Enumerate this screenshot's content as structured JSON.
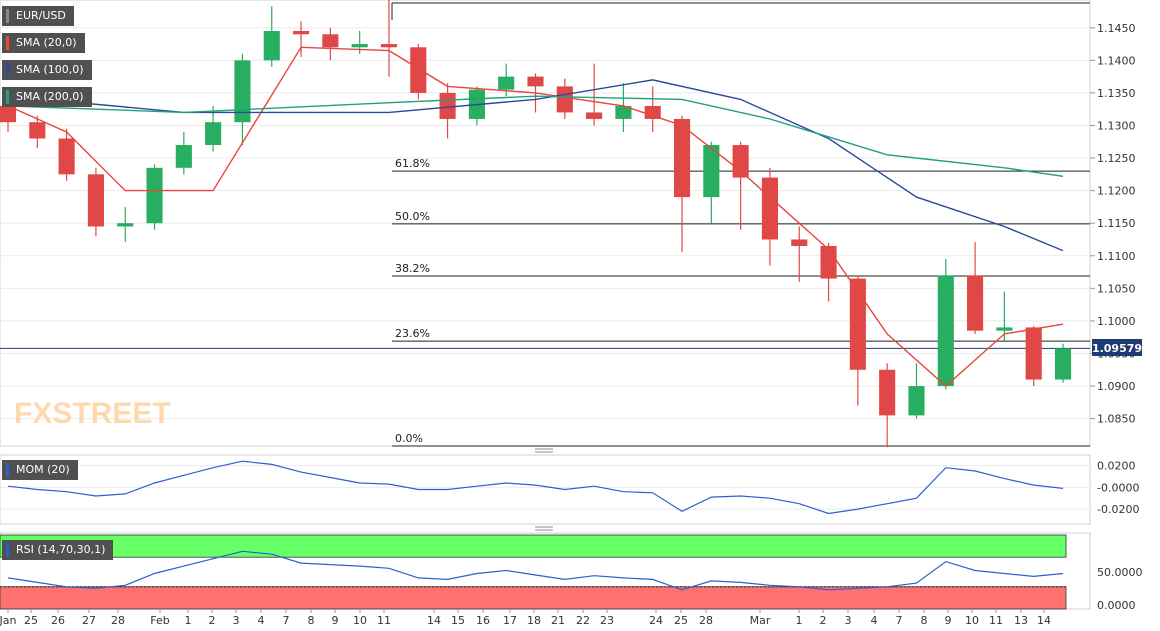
{
  "colors": {
    "bull": "#27ae60",
    "bear": "#e04848",
    "sma20": "#e8463c",
    "sma100": "#2c4a9a",
    "sma200": "#23a07a",
    "mom": "#2d5fd0",
    "rsi": "#2d5fd0",
    "rsi_overbought": "#66ff66",
    "rsi_oversold": "#ff7070",
    "last_price_bg": "#1f3b73"
  },
  "main": {
    "symbol": "EUR/USD",
    "indicators": [
      "SMA (20,0)",
      "SMA (100,0)",
      "SMA (200,0)"
    ],
    "last_price": "1.09579",
    "watermark": "FXSTREET",
    "yticks": [
      "1.1450",
      "1.1400",
      "1.1350",
      "1.1300",
      "1.1250",
      "1.1200",
      "1.1150",
      "1.1100",
      "1.1050",
      "1.1000",
      "1.0950",
      "1.0900",
      "1.0850"
    ]
  },
  "fibonacci": [
    {
      "label": "0.0%",
      "price": 1.0808
    },
    {
      "label": "23.6%",
      "price": 1.0969
    },
    {
      "label": "38.2%",
      "price": 1.1069
    },
    {
      "label": "50.0%",
      "price": 1.1149
    },
    {
      "label": "61.8%",
      "price": 1.123
    }
  ],
  "momentum": {
    "label": "MOM (20)",
    "yticks": [
      "0.0200",
      "-0.0000",
      "-0.0200"
    ]
  },
  "rsi": {
    "label": "RSI (14,70,30,1)",
    "yticks": [
      "50.0000",
      "0.0000"
    ]
  },
  "xticks": [
    "Jan",
    "25",
    "26",
    "27",
    "28",
    "Feb",
    "1",
    "2",
    "3",
    "4",
    "7",
    "8",
    "9",
    "10",
    "11",
    "14",
    "15",
    "16",
    "17",
    "18",
    "21",
    "22",
    "23",
    "24",
    "25",
    "28",
    "Mar",
    "1",
    "2",
    "3",
    "4",
    "7",
    "8",
    "9",
    "10",
    "11",
    "13",
    "14"
  ],
  "chart_data": {
    "type": "candlestick",
    "instrument": "EUR/USD",
    "ylim": [
      1.0808,
      1.1488
    ],
    "candles": [
      {
        "x": "Jan 24",
        "o": 1.133,
        "h": 1.1345,
        "l": 1.129,
        "c": 1.1305
      },
      {
        "x": "Jan 25",
        "o": 1.1305,
        "h": 1.1315,
        "l": 1.1265,
        "c": 1.128
      },
      {
        "x": "Jan 26",
        "o": 1.128,
        "h": 1.1295,
        "l": 1.1215,
        "c": 1.1225
      },
      {
        "x": "Jan 27",
        "o": 1.1225,
        "h": 1.1235,
        "l": 1.113,
        "c": 1.1145
      },
      {
        "x": "Jan 28",
        "o": 1.1145,
        "h": 1.1175,
        "l": 1.1121,
        "c": 1.115
      },
      {
        "x": "Jan 31",
        "o": 1.115,
        "h": 1.124,
        "l": 1.114,
        "c": 1.1235
      },
      {
        "x": "Feb 1",
        "o": 1.1235,
        "h": 1.129,
        "l": 1.1225,
        "c": 1.127
      },
      {
        "x": "Feb 2",
        "o": 1.127,
        "h": 1.133,
        "l": 1.126,
        "c": 1.1305
      },
      {
        "x": "Feb 3",
        "o": 1.1305,
        "h": 1.141,
        "l": 1.127,
        "c": 1.14
      },
      {
        "x": "Feb 4",
        "o": 1.14,
        "h": 1.1483,
        "l": 1.139,
        "c": 1.1445
      },
      {
        "x": "Feb 7",
        "o": 1.1445,
        "h": 1.146,
        "l": 1.1405,
        "c": 1.144
      },
      {
        "x": "Feb 8",
        "o": 1.144,
        "h": 1.145,
        "l": 1.14,
        "c": 1.142
      },
      {
        "x": "Feb 9",
        "o": 1.142,
        "h": 1.1445,
        "l": 1.141,
        "c": 1.1425
      },
      {
        "x": "Feb 10",
        "o": 1.1425,
        "h": 1.1495,
        "l": 1.1375,
        "c": 1.142
      },
      {
        "x": "Feb 11",
        "o": 1.142,
        "h": 1.1425,
        "l": 1.134,
        "c": 1.135
      },
      {
        "x": "Feb 14",
        "o": 1.135,
        "h": 1.1365,
        "l": 1.128,
        "c": 1.131
      },
      {
        "x": "Feb 15",
        "o": 1.131,
        "h": 1.136,
        "l": 1.13,
        "c": 1.1355
      },
      {
        "x": "Feb 16",
        "o": 1.1355,
        "h": 1.1395,
        "l": 1.1345,
        "c": 1.1375
      },
      {
        "x": "Feb 17",
        "o": 1.1375,
        "h": 1.138,
        "l": 1.132,
        "c": 1.136
      },
      {
        "x": "Feb 18",
        "o": 1.136,
        "h": 1.1372,
        "l": 1.131,
        "c": 1.132
      },
      {
        "x": "Feb 21",
        "o": 1.132,
        "h": 1.1395,
        "l": 1.13,
        "c": 1.131
      },
      {
        "x": "Feb 22",
        "o": 1.131,
        "h": 1.1365,
        "l": 1.129,
        "c": 1.133
      },
      {
        "x": "Feb 23",
        "o": 1.133,
        "h": 1.136,
        "l": 1.129,
        "c": 1.131
      },
      {
        "x": "Feb 24",
        "o": 1.131,
        "h": 1.1315,
        "l": 1.1106,
        "c": 1.119
      },
      {
        "x": "Feb 25",
        "o": 1.119,
        "h": 1.1275,
        "l": 1.115,
        "c": 1.127
      },
      {
        "x": "Feb 28",
        "o": 1.127,
        "h": 1.1275,
        "l": 1.114,
        "c": 1.122
      },
      {
        "x": "Mar 1",
        "o": 1.122,
        "h": 1.1235,
        "l": 1.1085,
        "c": 1.1125
      },
      {
        "x": "Mar 2",
        "o": 1.1125,
        "h": 1.1145,
        "l": 1.106,
        "c": 1.1115
      },
      {
        "x": "Mar 3",
        "o": 1.1115,
        "h": 1.112,
        "l": 1.103,
        "c": 1.1065
      },
      {
        "x": "Mar 4",
        "o": 1.1065,
        "h": 1.107,
        "l": 1.087,
        "c": 1.0925
      },
      {
        "x": "Mar 7",
        "o": 1.0925,
        "h": 1.0935,
        "l": 1.0806,
        "c": 1.0855
      },
      {
        "x": "Mar 8",
        "o": 1.0855,
        "h": 1.0935,
        "l": 1.085,
        "c": 1.09
      },
      {
        "x": "Mar 9",
        "o": 1.09,
        "h": 1.1095,
        "l": 1.0895,
        "c": 1.107
      },
      {
        "x": "Mar 10",
        "o": 1.107,
        "h": 1.1121,
        "l": 1.098,
        "c": 1.0985
      },
      {
        "x": "Mar 11",
        "o": 1.0985,
        "h": 1.1045,
        "l": 1.097,
        "c": 1.099
      },
      {
        "x": "Mar 13",
        "o": 1.099,
        "h": 1.0992,
        "l": 1.09,
        "c": 1.091
      },
      {
        "x": "Mar 14",
        "o": 1.091,
        "h": 1.0965,
        "l": 1.0905,
        "c": 1.0958
      }
    ],
    "sma20": [
      {
        "x": "Jan 24",
        "y": 1.133
      },
      {
        "x": "Jan 26",
        "y": 1.129
      },
      {
        "x": "Jan 28",
        "y": 1.12
      },
      {
        "x": "Feb 2",
        "y": 1.12
      },
      {
        "x": "Feb 7",
        "y": 1.142
      },
      {
        "x": "Feb 10",
        "y": 1.1415
      },
      {
        "x": "Feb 14",
        "y": 1.136
      },
      {
        "x": "Feb 17",
        "y": 1.135
      },
      {
        "x": "Feb 22",
        "y": 1.133
      },
      {
        "x": "Feb 24",
        "y": 1.13
      },
      {
        "x": "Feb 28",
        "y": 1.123
      },
      {
        "x": "Mar 3",
        "y": 1.111
      },
      {
        "x": "Mar 7",
        "y": 1.098
      },
      {
        "x": "Mar 9",
        "y": 1.09
      },
      {
        "x": "Mar 11",
        "y": 1.098
      },
      {
        "x": "Mar 14",
        "y": 1.0995
      }
    ],
    "sma100": [
      {
        "x": "Jan 24",
        "y": 1.1345
      },
      {
        "x": "Feb 1",
        "y": 1.132
      },
      {
        "x": "Feb 10",
        "y": 1.132
      },
      {
        "x": "Feb 17",
        "y": 1.134
      },
      {
        "x": "Feb 23",
        "y": 1.137
      },
      {
        "x": "Feb 28",
        "y": 1.134
      },
      {
        "x": "Mar 3",
        "y": 1.128
      },
      {
        "x": "Mar 8",
        "y": 1.119
      },
      {
        "x": "Mar 11",
        "y": 1.1145
      },
      {
        "x": "Mar 14",
        "y": 1.1108
      }
    ],
    "sma200": [
      {
        "x": "Jan 24",
        "y": 1.133
      },
      {
        "x": "Feb 1",
        "y": 1.132
      },
      {
        "x": "Feb 10",
        "y": 1.1335
      },
      {
        "x": "Feb 17",
        "y": 1.1345
      },
      {
        "x": "Feb 24",
        "y": 1.134
      },
      {
        "x": "Mar 1",
        "y": 1.131
      },
      {
        "x": "Mar 7",
        "y": 1.1255
      },
      {
        "x": "Mar 11",
        "y": 1.1235
      },
      {
        "x": "Mar 14",
        "y": 1.1222
      }
    ],
    "momentum": {
      "ylim": [
        -0.03,
        0.026
      ],
      "values": [
        0.001,
        -0.002,
        -0.004,
        -0.008,
        -0.006,
        0.004,
        0.011,
        0.018,
        0.024,
        0.021,
        0.014,
        0.009,
        0.004,
        0.003,
        -0.002,
        -0.002,
        0.001,
        0.004,
        0.002,
        -0.002,
        0.001,
        -0.004,
        -0.005,
        -0.022,
        -0.009,
        -0.008,
        -0.01,
        -0.015,
        -0.024,
        -0.02,
        -0.015,
        -0.01,
        0.018,
        0.015,
        0.008,
        0.002,
        -0.001
      ]
    },
    "rsi": {
      "ylim": [
        0,
        100
      ],
      "overbought": 70,
      "oversold": 30,
      "values": [
        42,
        36,
        30,
        28,
        32,
        48,
        58,
        68,
        78,
        74,
        62,
        60,
        58,
        55,
        42,
        40,
        48,
        52,
        46,
        40,
        45,
        42,
        40,
        26,
        38,
        36,
        32,
        30,
        26,
        28,
        30,
        35,
        64,
        52,
        48,
        44,
        48
      ]
    }
  }
}
